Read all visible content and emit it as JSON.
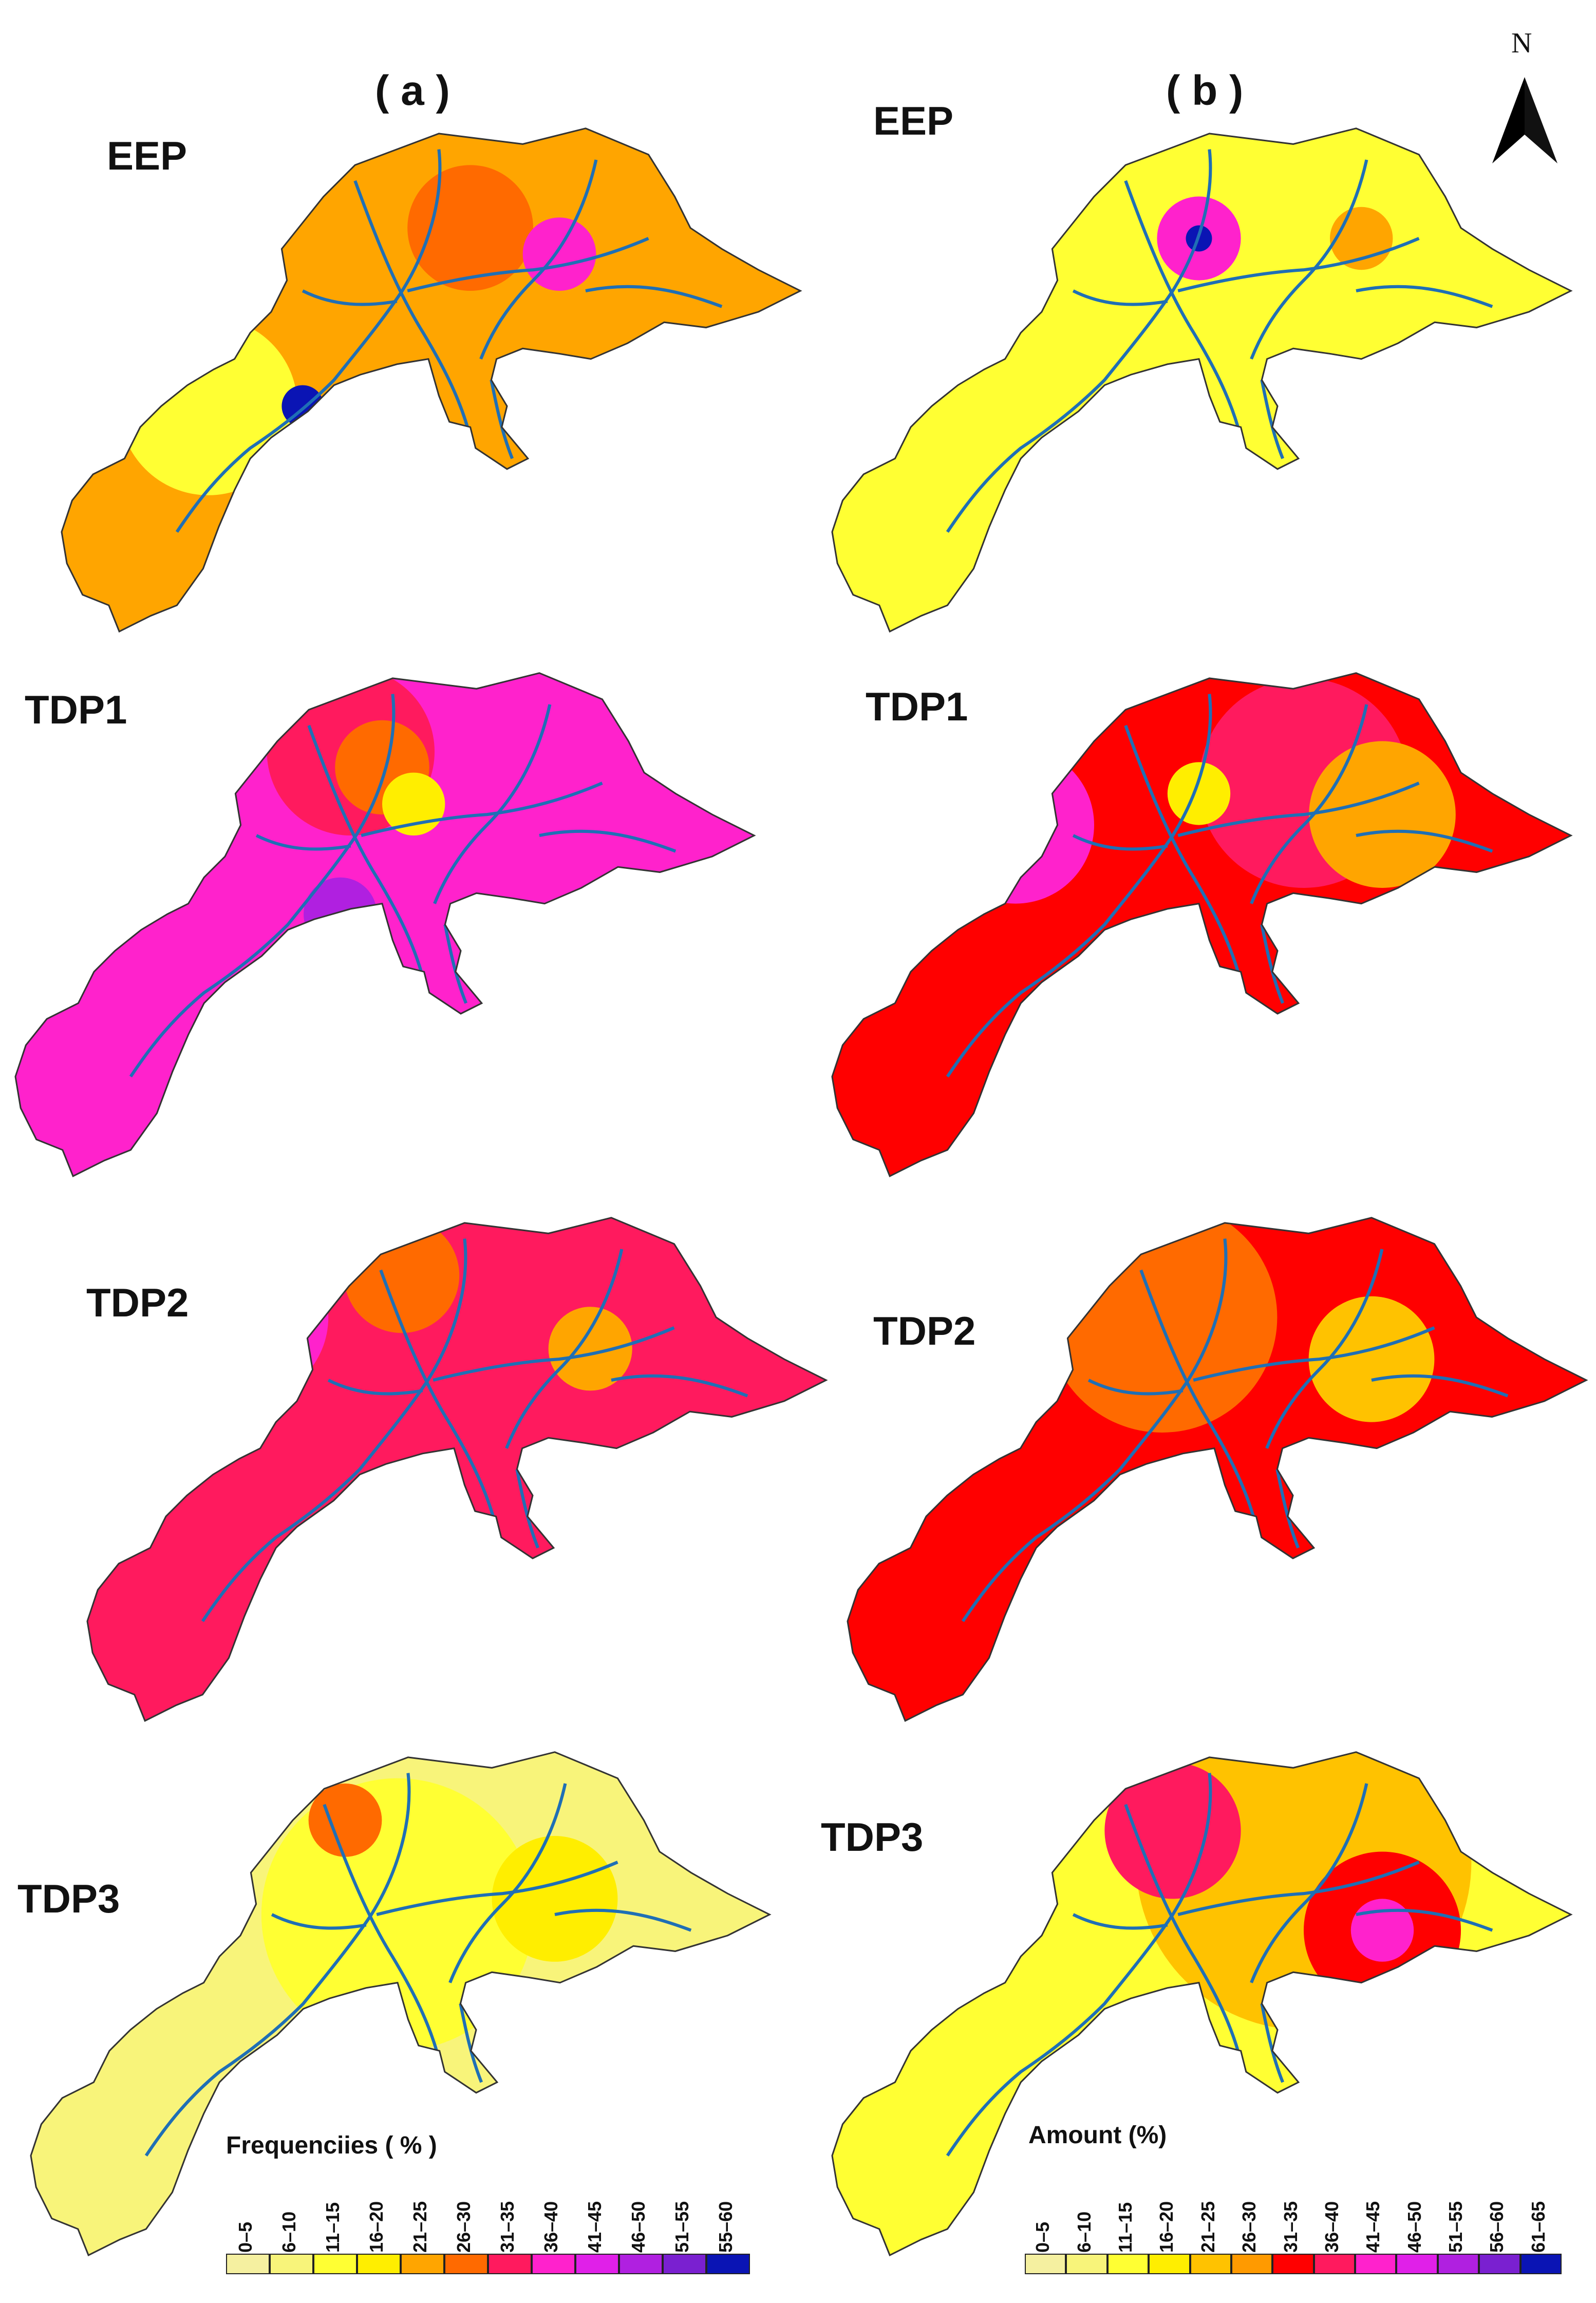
{
  "columns": [
    {
      "key": "a",
      "label": "( a )"
    },
    {
      "key": "b",
      "label": "( b )"
    }
  ],
  "rows": [
    "EEP",
    "TDP1",
    "TDP2",
    "TDP3"
  ],
  "north_label": "N",
  "legend_a": {
    "title": "Frequenciies ( % )",
    "classes": [
      "0–5",
      "6–10",
      "11–15",
      "16–20",
      "21–25",
      "26–30",
      "31–35",
      "36–40",
      "41–45",
      "46–50",
      "51–55",
      "55–60"
    ],
    "colors": [
      "#f5f0a0",
      "#f8f47a",
      "#ffff33",
      "#ffee00",
      "#ffa500",
      "#ff6a00",
      "#ff1a5e",
      "#ff22cc",
      "#e020e8",
      "#b020e0",
      "#7a20d0",
      "#0a14b4"
    ]
  },
  "legend_b": {
    "title": "Amount (%)",
    "classes": [
      "0–5",
      "6–10",
      "11–15",
      "16–20",
      "21–25",
      "26–30",
      "31–35",
      "36–40",
      "41–45",
      "46–50",
      "51–55",
      "56–60",
      "61–65"
    ],
    "colors": [
      "#f5f0a0",
      "#f8f47a",
      "#ffff33",
      "#ffee00",
      "#ffc200",
      "#ff9a00",
      "#ff0000",
      "#ff1a5e",
      "#ff22cc",
      "#e020e8",
      "#b020e0",
      "#7a20d0",
      "#0a14b4"
    ]
  },
  "panels": [
    {
      "id": "a-EEP",
      "base": "#ffa500",
      "blobs": [
        {
          "c": "#ffff33"
        },
        {
          "c": "#ff6a00"
        },
        {
          "c": "#ff22cc"
        },
        {
          "c": "#0a14b4"
        }
      ]
    },
    {
      "id": "b-EEP",
      "base": "#ffff33",
      "blobs": [
        {
          "c": "#f5f0a0"
        },
        {
          "c": "#ffa500"
        },
        {
          "c": "#ff22cc"
        },
        {
          "c": "#0a14b4"
        }
      ]
    },
    {
      "id": "a-TDP1",
      "base": "#ff22cc",
      "blobs": [
        {
          "c": "#ff1a5e"
        },
        {
          "c": "#ff6a00"
        },
        {
          "c": "#ffee00"
        },
        {
          "c": "#b020e0"
        }
      ]
    },
    {
      "id": "b-TDP1",
      "base": "#ff0000",
      "blobs": [
        {
          "c": "#ff1a5e"
        },
        {
          "c": "#ff22cc"
        },
        {
          "c": "#ffa500"
        },
        {
          "c": "#ffee00"
        }
      ]
    },
    {
      "id": "a-TDP2",
      "base": "#ff1a5e",
      "blobs": [
        {
          "c": "#ff22cc"
        },
        {
          "c": "#ff6a00"
        },
        {
          "c": "#ffa500"
        },
        {
          "c": "#b020e0"
        }
      ]
    },
    {
      "id": "b-TDP2",
      "base": "#ff0000",
      "blobs": [
        {
          "c": "#ff6a00"
        },
        {
          "c": "#ffc200"
        },
        {
          "c": "#ff22cc"
        },
        {
          "c": "#0a14b4"
        }
      ]
    },
    {
      "id": "a-TDP3",
      "base": "#f8f47a",
      "blobs": [
        {
          "c": "#f5f0a0"
        },
        {
          "c": "#ffff33"
        },
        {
          "c": "#ff6a00"
        },
        {
          "c": "#ffee00"
        }
      ]
    },
    {
      "id": "b-TDP3",
      "base": "#ffff33",
      "blobs": [
        {
          "c": "#ffc200"
        },
        {
          "c": "#ff1a5e"
        },
        {
          "c": "#ff0000"
        },
        {
          "c": "#ff22cc"
        }
      ]
    }
  ]
}
